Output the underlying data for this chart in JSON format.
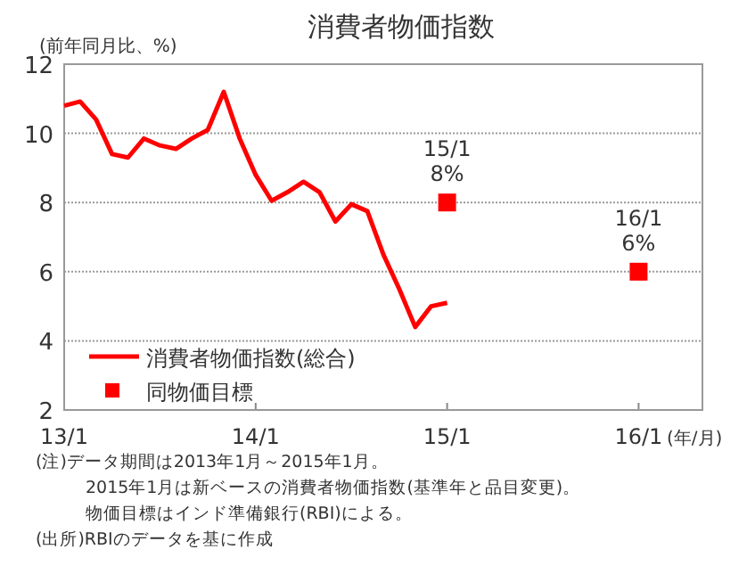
{
  "chart_data": {
    "type": "line",
    "title": "消費者物価指数",
    "ylabel": "(前年同月比、%)",
    "xlabel": "(年/月)",
    "xlim": [
      "2013-01",
      "2016-05"
    ],
    "xticks": [
      {
        "value": "2013-01",
        "label": "13/1"
      },
      {
        "value": "2014-01",
        "label": "14/1"
      },
      {
        "value": "2015-01",
        "label": "15/1"
      },
      {
        "value": "2016-01",
        "label": "16/1"
      }
    ],
    "ylim": [
      2,
      12
    ],
    "yticks": [
      2,
      4,
      6,
      8,
      10,
      12
    ],
    "grid": "y",
    "legend": "bottom left",
    "series": [
      {
        "name": "消費者物価指数(総合)",
        "type": "line",
        "color": "#ff0000",
        "marker": "none",
        "line_style": "solid",
        "x": [
          "2013-01",
          "2013-02",
          "2013-03",
          "2013-04",
          "2013-05",
          "2013-06",
          "2013-07",
          "2013-08",
          "2013-09",
          "2013-10",
          "2013-11",
          "2013-12",
          "2014-01",
          "2014-02",
          "2014-03",
          "2014-04",
          "2014-05",
          "2014-06",
          "2014-07",
          "2014-08",
          "2014-09",
          "2014-10",
          "2014-11",
          "2014-12",
          "2015-01"
        ],
        "values": [
          10.8,
          10.92,
          10.4,
          9.4,
          9.3,
          9.85,
          9.65,
          9.55,
          9.85,
          10.1,
          11.2,
          9.85,
          8.8,
          8.05,
          8.3,
          8.6,
          8.3,
          7.45,
          7.95,
          7.75,
          6.5,
          5.5,
          4.4,
          5.0,
          5.1
        ]
      },
      {
        "name": "同物価目標",
        "type": "scatter",
        "color": "#ff0000",
        "marker": "square",
        "x": [
          "2015-01",
          "2016-01"
        ],
        "values": [
          8,
          6
        ],
        "value_labels": [
          "15/1\n8%",
          "16/1\n6%"
        ]
      }
    ],
    "annotations": [
      "(注)データ期間は2013年1月～2015年1月。",
      "2015年1月は新ベースの消費者物価指数(基準年と品目変更)。",
      "物価目標はインド準備銀行(RBI)による。",
      "(出所)RBIのデータを基に作成"
    ]
  }
}
